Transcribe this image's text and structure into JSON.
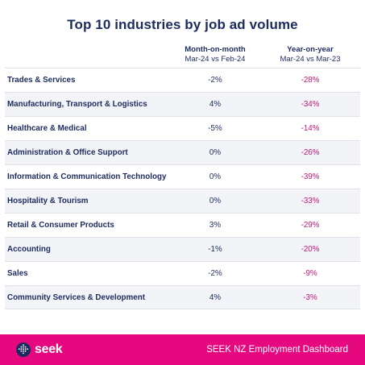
{
  "title": "Top 10 industries by job ad volume",
  "columns": {
    "mom": {
      "heading": "Month-on-month",
      "subheading": "Mar-24 vs Feb-24"
    },
    "yoy": {
      "heading": "Year-on-year",
      "subheading": "Mar-24 vs Mar-23"
    }
  },
  "rows": [
    {
      "industry": "Trades & Services",
      "mom": "-2%",
      "yoy": "-28%"
    },
    {
      "industry": "Manufacturing, Transport & Logistics",
      "mom": "4%",
      "yoy": "-34%"
    },
    {
      "industry": "Healthcare & Medical",
      "mom": "-5%",
      "yoy": "-14%"
    },
    {
      "industry": "Administration & Office Support",
      "mom": "0%",
      "yoy": "-26%"
    },
    {
      "industry": "Information & Communication Technology",
      "mom": "0%",
      "yoy": "-39%"
    },
    {
      "industry": "Hospitality & Tourism",
      "mom": "0%",
      "yoy": "-33%"
    },
    {
      "industry": "Retail & Consumer Products",
      "mom": "3%",
      "yoy": "-29%"
    },
    {
      "industry": "Accounting",
      "mom": "-1%",
      "yoy": "-20%"
    },
    {
      "industry": "Sales",
      "mom": "-2%",
      "yoy": "-9%"
    },
    {
      "industry": "Community Services & Development",
      "mom": "4%",
      "yoy": "-3%"
    }
  ],
  "footer": {
    "logo_text": "seek",
    "logo_icon": "seek-dots-logo-icon",
    "caption": "SEEK NZ Employment Dashboard"
  },
  "colors": {
    "navy": "#1c2b5e",
    "magenta": "#e5087e",
    "yoy_text": "#c0177a",
    "alt_row": "#f3f4f7"
  }
}
